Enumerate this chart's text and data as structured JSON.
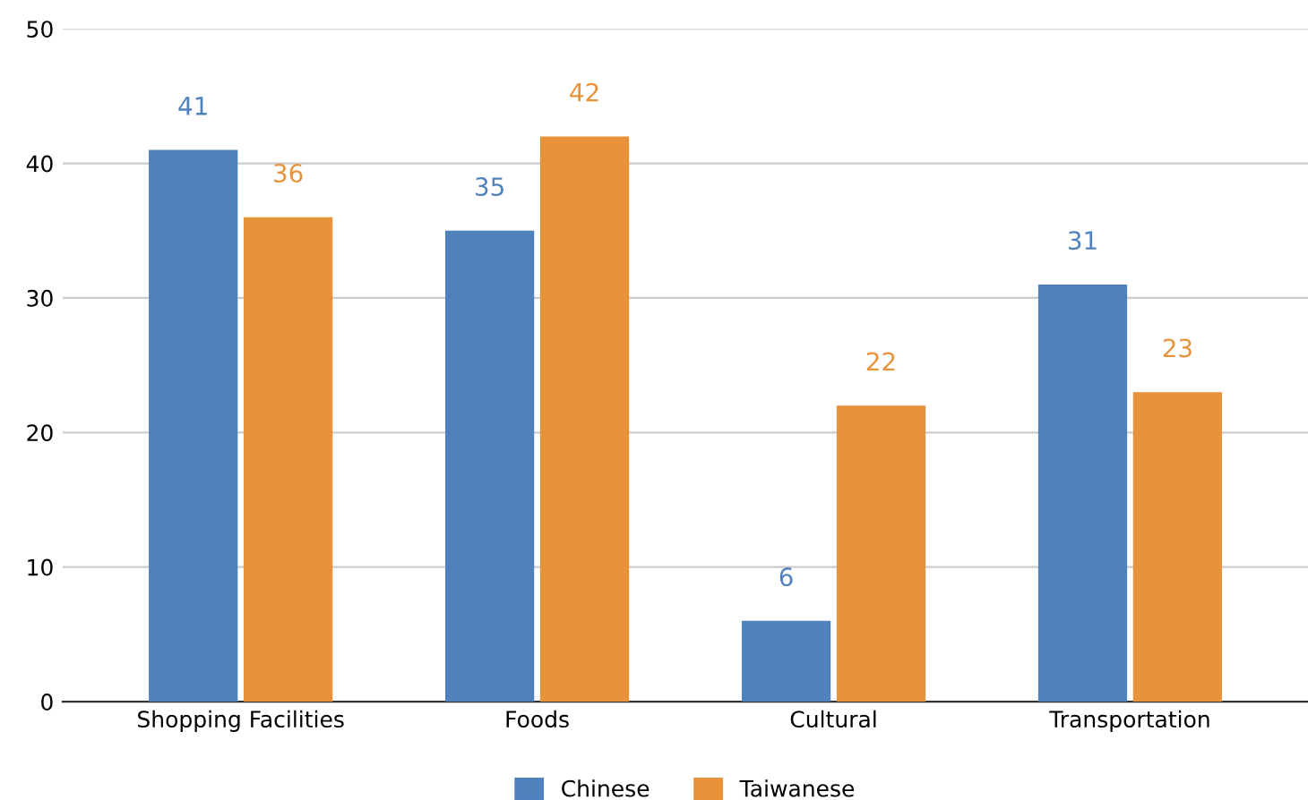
{
  "chart_data": {
    "type": "bar",
    "categories": [
      "Shopping Facilities",
      "Foods",
      "Cultural",
      "Transportation"
    ],
    "series": [
      {
        "name": "Chinese",
        "color": "#4f81bd",
        "values": [
          41,
          35,
          6,
          31
        ]
      },
      {
        "name": "Taiwanese",
        "color": "#e8923a",
        "values": [
          36,
          42,
          22,
          23
        ]
      }
    ],
    "ylim": [
      0,
      50
    ],
    "yticks": [
      0,
      10,
      20,
      30,
      40,
      50
    ],
    "grid": "y",
    "legend": "bottom",
    "data_labels": true
  }
}
